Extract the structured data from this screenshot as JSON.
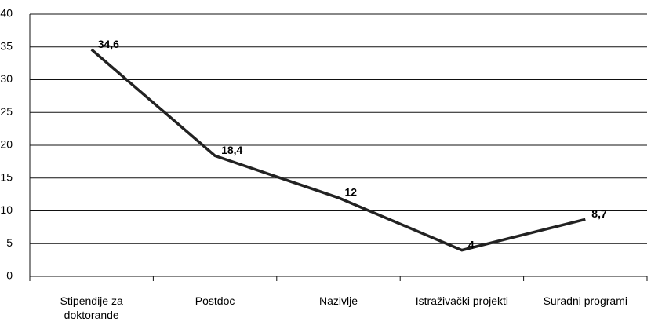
{
  "chart_data": {
    "type": "line",
    "categories": [
      "Stipendije za doktorande",
      "Postdoc",
      "Nazivlje",
      "Istraživački projekti",
      "Suradni programi"
    ],
    "values": [
      34.6,
      18.4,
      12,
      4,
      8.7
    ],
    "value_labels": [
      "34,6",
      "18,4",
      "12",
      "4",
      "8,7"
    ],
    "color": "#222222",
    "ylim": [
      0,
      40
    ],
    "yticks": [
      0,
      5,
      10,
      15,
      20,
      25,
      30,
      35,
      40
    ],
    "grid": true
  }
}
